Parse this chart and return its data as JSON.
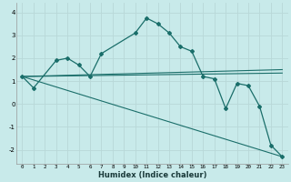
{
  "xlabel": "Humidex (Indice chaleur)",
  "bg_color": "#c8eaea",
  "grid_color": "#b8d8d8",
  "line_color": "#1a6e6a",
  "xlim": [
    -0.5,
    23.5
  ],
  "ylim": [
    -2.6,
    4.4
  ],
  "yticks": [
    -2,
    -1,
    0,
    1,
    2,
    3,
    4
  ],
  "xticks": [
    0,
    1,
    2,
    3,
    4,
    5,
    6,
    7,
    8,
    9,
    10,
    11,
    12,
    13,
    14,
    15,
    16,
    17,
    18,
    19,
    20,
    21,
    22,
    23
  ],
  "series_main": {
    "x": [
      0,
      1,
      3,
      4,
      5,
      6,
      7,
      10,
      11,
      12,
      13,
      14,
      15,
      16,
      17,
      18,
      19,
      20,
      21,
      22,
      23
    ],
    "y": [
      1.2,
      0.7,
      1.9,
      2.0,
      1.7,
      1.2,
      2.2,
      3.1,
      3.75,
      3.5,
      3.1,
      2.5,
      2.3,
      1.2,
      1.1,
      -0.2,
      0.9,
      0.8,
      -0.1,
      -1.8,
      -2.3
    ]
  },
  "trend_lines": [
    {
      "x": [
        0,
        23
      ],
      "y": [
        1.2,
        -2.3
      ]
    },
    {
      "x": [
        0,
        23
      ],
      "y": [
        1.2,
        1.35
      ]
    },
    {
      "x": [
        0,
        23
      ],
      "y": [
        1.2,
        1.5
      ]
    }
  ]
}
